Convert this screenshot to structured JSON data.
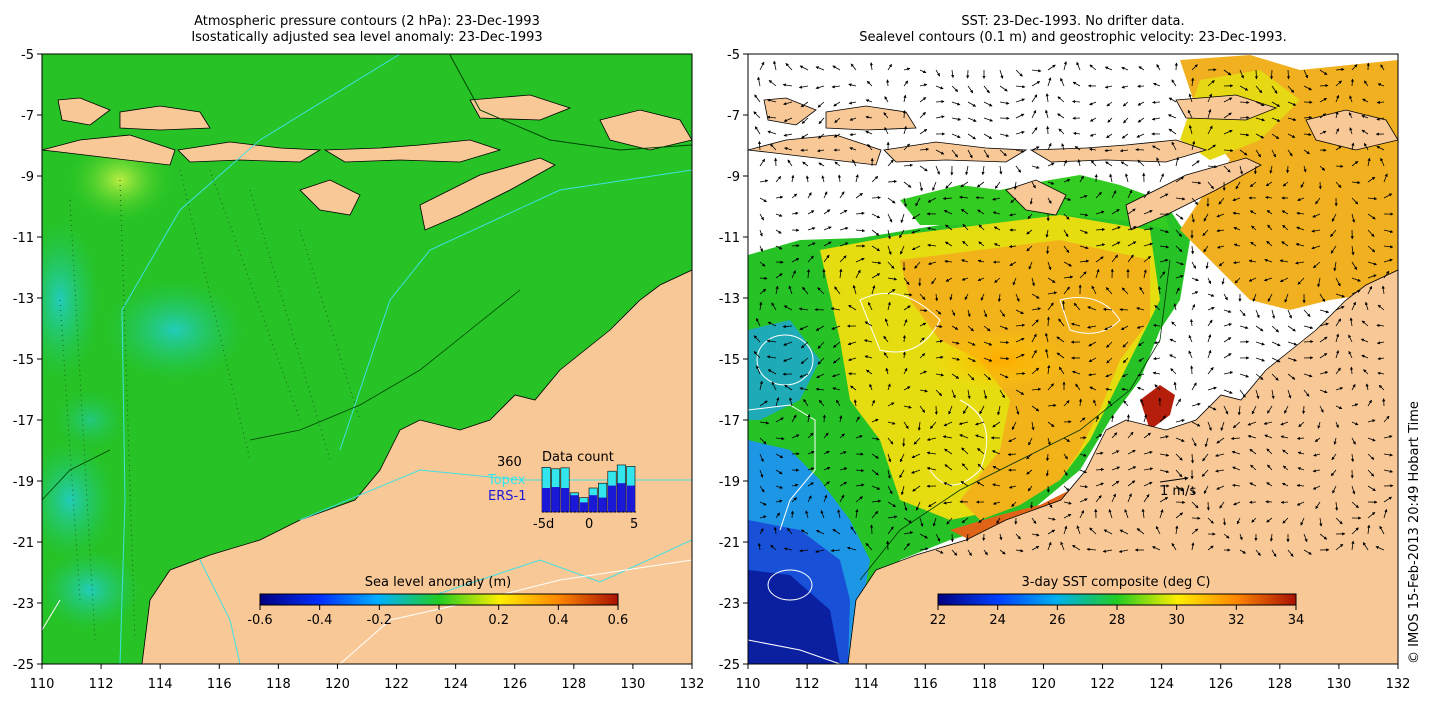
{
  "left_panel": {
    "title_line1": "Atmospheric pressure contours (2 hPa): 23-Dec-1993",
    "title_line2": "Isostatically adjusted sea level anomaly: 23-Dec-1993",
    "colorbar": {
      "label": "Sea level anomaly (m)",
      "ticks": [
        "-0.6",
        "-0.4",
        "-0.2",
        "0",
        "0.2",
        "0.4",
        "0.6"
      ],
      "range": [
        -0.6,
        0.6
      ]
    },
    "inset": {
      "title": "Data count",
      "max_label": "360",
      "legend_topex": "Topex",
      "legend_ers": "ERS-1",
      "x_ticks": [
        "-5d",
        "0",
        "5"
      ],
      "topex_color": "#33e6ee",
      "ers_color": "#1a1ad6",
      "bars_topex_fraction": [
        0.93,
        0.9,
        0.92,
        0.4,
        0.3,
        0.5,
        0.6,
        0.85,
        0.98,
        0.95
      ],
      "bars_ers_fraction": [
        0.5,
        0.52,
        0.5,
        0.35,
        0.2,
        0.35,
        0.3,
        0.55,
        0.6,
        0.55
      ]
    }
  },
  "right_panel": {
    "title_line1": "SST: 23-Dec-1993. No drifter data.",
    "title_line2": "Sealevel contours (0.1 m) and geostrophic velocity: 23-Dec-1993.",
    "scale_label": "1 m/s",
    "colorbar": {
      "label": "3-day SST composite (deg C)",
      "ticks": [
        "22",
        "24",
        "26",
        "28",
        "30",
        "32",
        "34"
      ],
      "range": [
        22,
        34
      ]
    }
  },
  "axes": {
    "lon_range": [
      110,
      132
    ],
    "lat_range": [
      -25,
      -5
    ],
    "x_ticks": [
      "110",
      "112",
      "114",
      "116",
      "118",
      "120",
      "122",
      "124",
      "126",
      "128",
      "130",
      "132"
    ],
    "y_ticks": [
      "-5",
      "-7",
      "-9",
      "-11",
      "-13",
      "-15",
      "-17",
      "-19",
      "-21",
      "-23",
      "-25"
    ]
  },
  "credit": "© IMOS 15-Feb-2013 20:49 Hobart Time",
  "colors": {
    "land": "#f9c897",
    "ocean_green": "#22cc22",
    "no_data": "#ffffff"
  }
}
